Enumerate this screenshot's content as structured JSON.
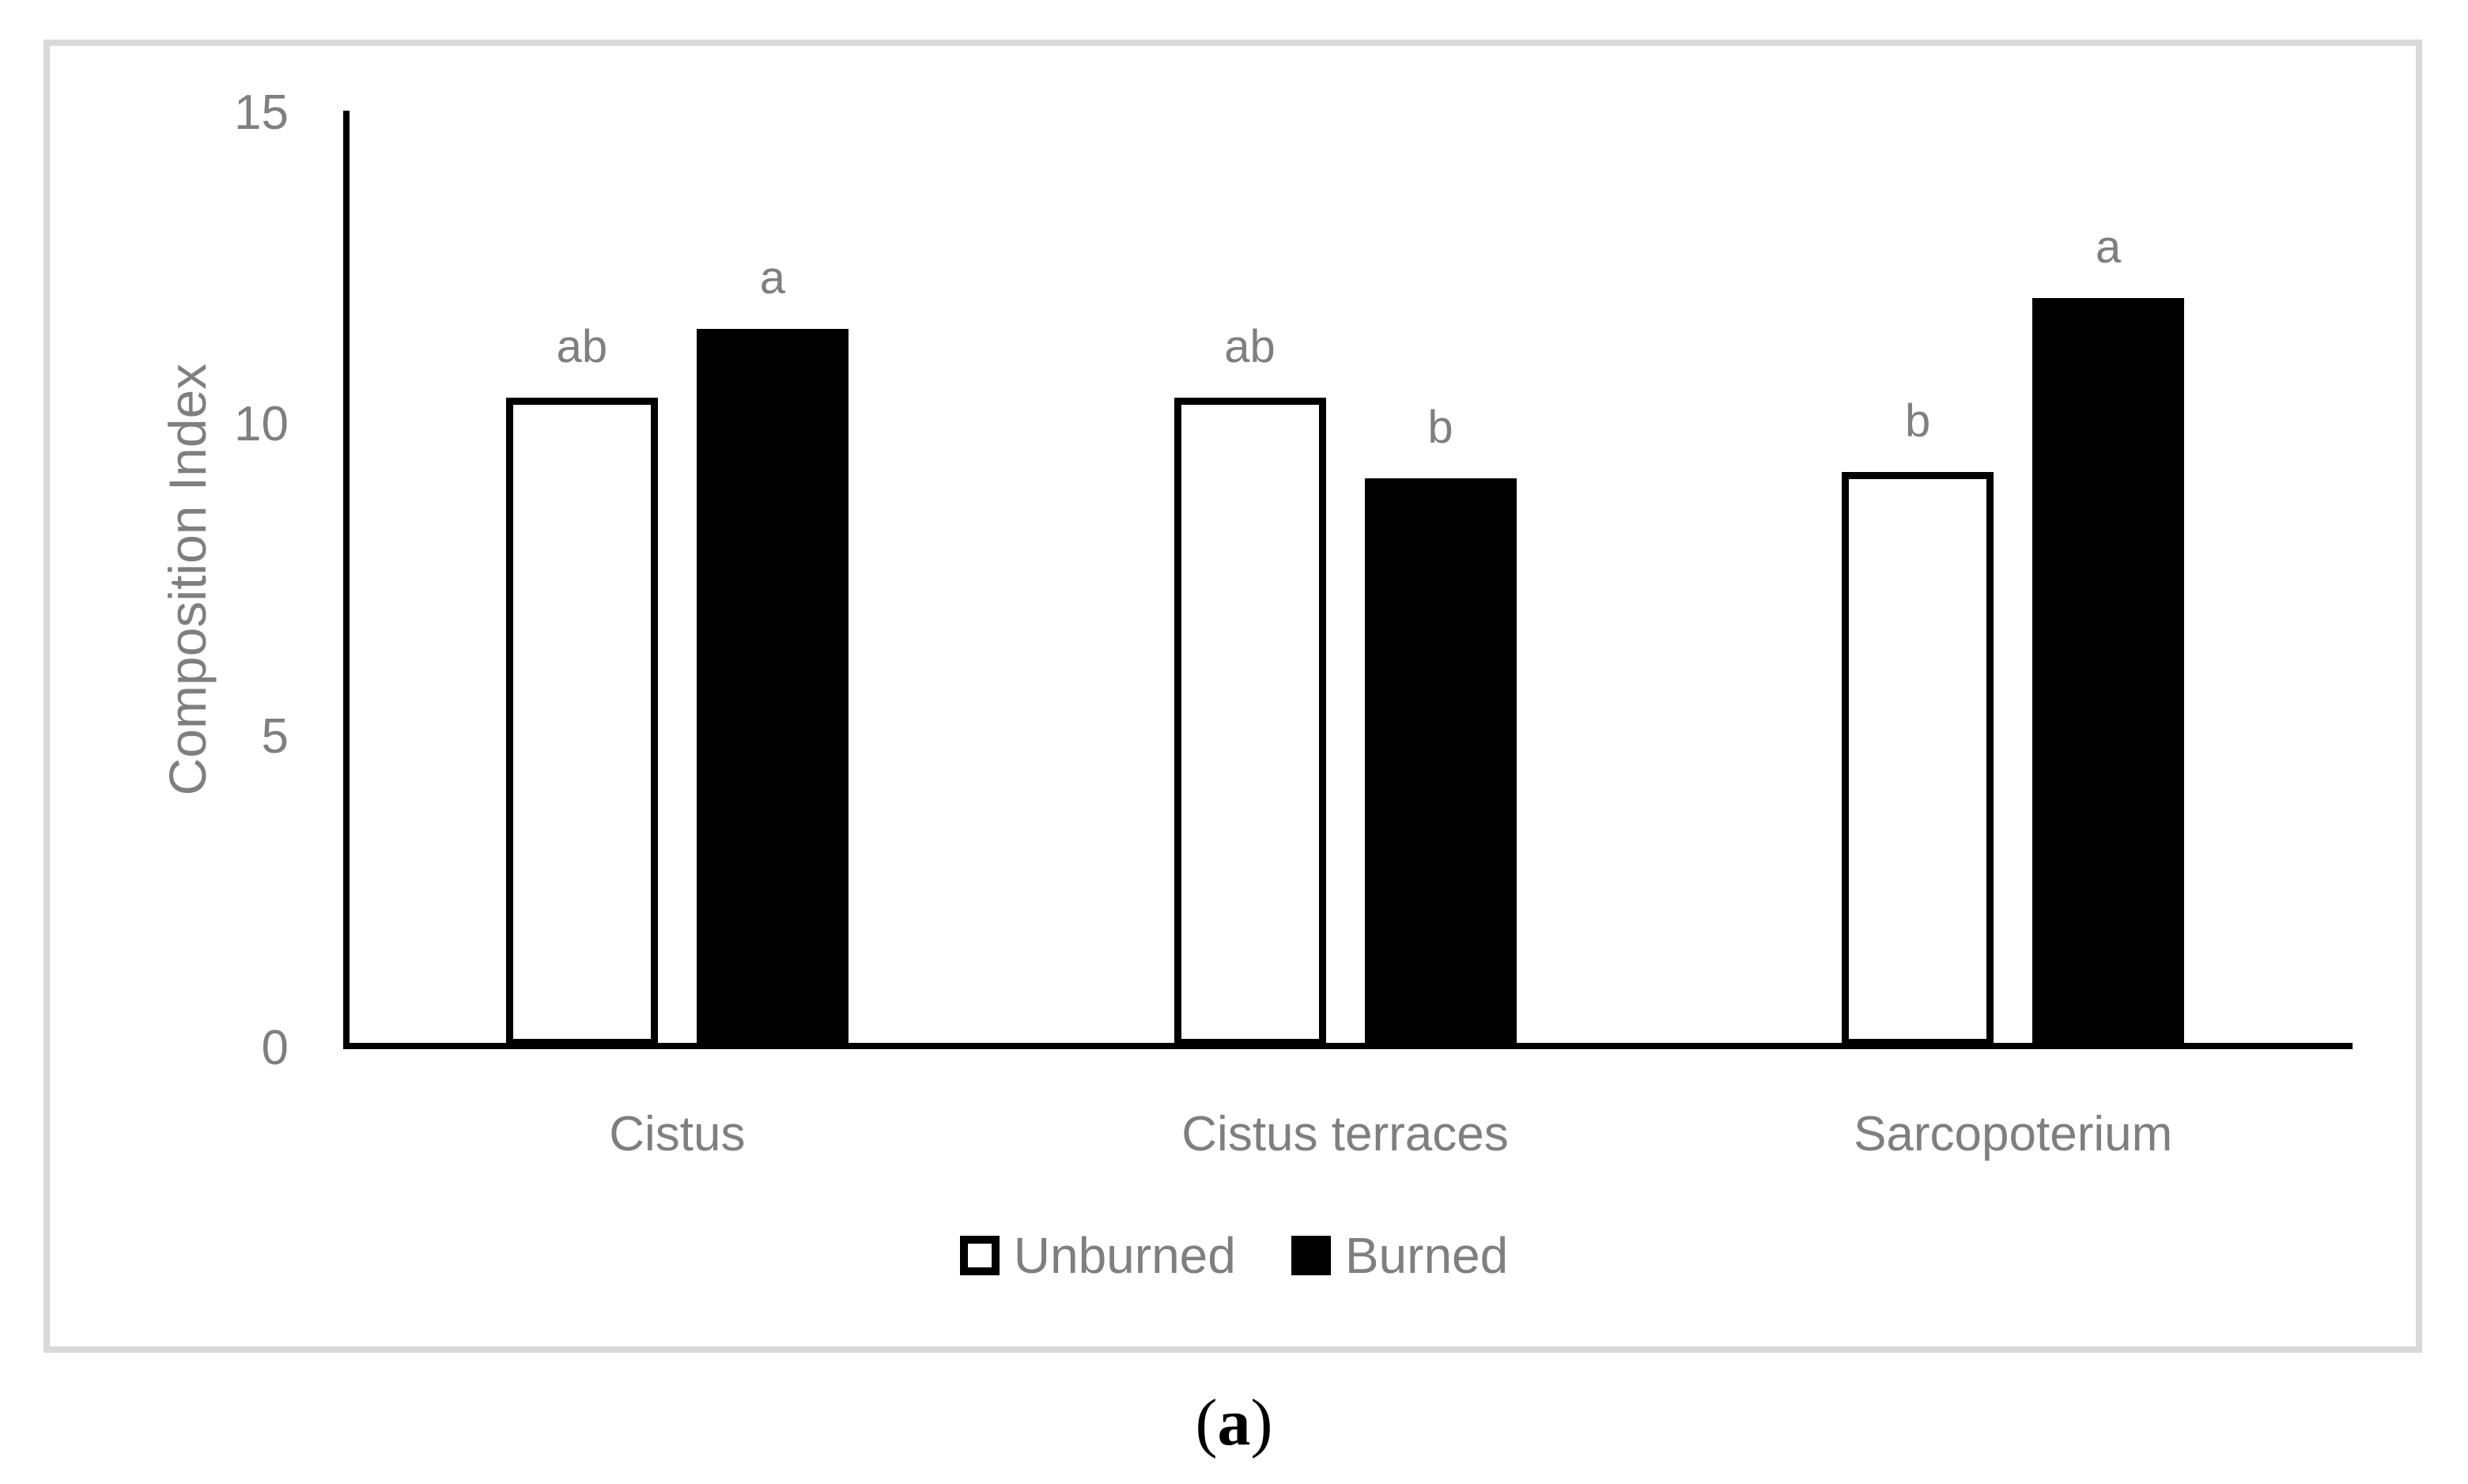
{
  "chart_data": {
    "type": "bar",
    "title": "",
    "categories": [
      "Cistus",
      "Cistus terraces",
      "Sarcopoterium"
    ],
    "series": [
      {
        "name": "Unburned",
        "values": [
          10.4,
          10.4,
          9.2
        ],
        "bar_letters": [
          "ab",
          "ab",
          "b"
        ],
        "fill": "#ffffff",
        "stroke": "#000000"
      },
      {
        "name": "Burned",
        "values": [
          11.5,
          9.1,
          12.0
        ],
        "bar_letters": [
          "a",
          "b",
          "a"
        ],
        "fill": "#000000",
        "stroke": "#000000"
      }
    ],
    "xlabel": "",
    "ylabel": "Composition Index",
    "ylim": [
      0,
      15
    ],
    "yticks": [
      0,
      5,
      10,
      15
    ],
    "grid": false,
    "legend_position": "bottom"
  },
  "caption": {
    "paren_open": "(",
    "letter": "a",
    "paren_close": ")"
  },
  "colors": {
    "text_gray": "#7f7f7f",
    "axis_black": "#000000",
    "panel_border": "#d9d9d9",
    "background": "#ffffff",
    "unburned_fill": "#ffffff",
    "burned_fill": "#000000"
  }
}
